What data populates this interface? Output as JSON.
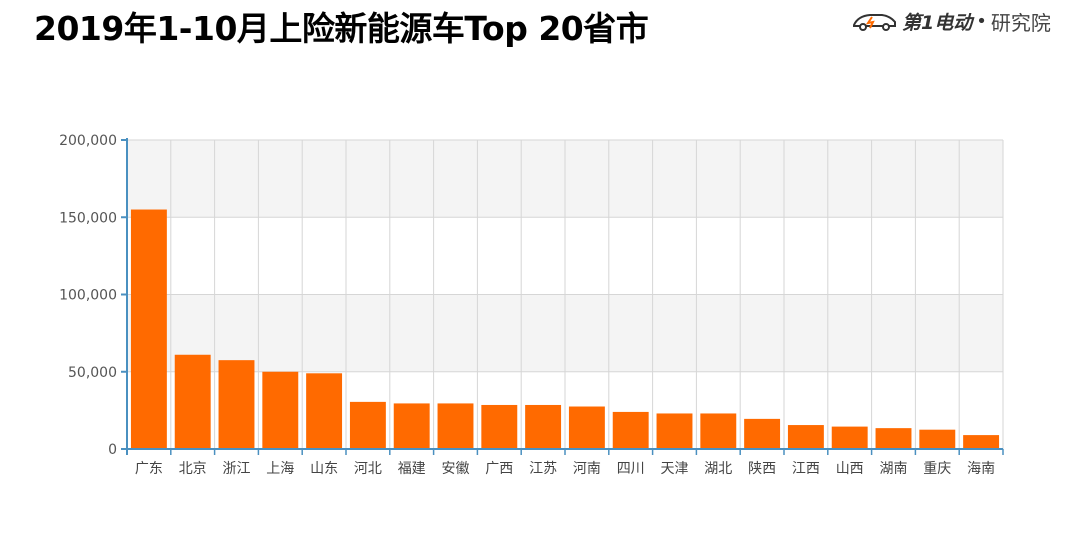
{
  "title": "2019年1-10月上险新能源车Top 20省市",
  "brand": {
    "logo_text": "第1电动",
    "separator": "•",
    "suffix": "研究院"
  },
  "colors": {
    "bar": "#ff6a00",
    "axis": "#4a90c0",
    "band_light": "#f4f4f4",
    "grid": "#d6d6d6"
  },
  "chart_data": {
    "type": "bar",
    "title": "2019年1-10月上险新能源车Top 20省市",
    "categories": [
      "广东",
      "北京",
      "浙江",
      "上海",
      "山东",
      "河北",
      "福建",
      "安徽",
      "广西",
      "江苏",
      "河南",
      "四川",
      "天津",
      "湖北",
      "陕西",
      "江西",
      "山西",
      "湖南",
      "重庆",
      "海南"
    ],
    "series": [
      {
        "values": [
          155000,
          61000,
          57500,
          50000,
          49000,
          30500,
          29500,
          29500,
          28500,
          28500,
          27500,
          24000,
          23000,
          23000,
          19500,
          15500,
          14500,
          13500,
          12500,
          9000
        ]
      }
    ],
    "ylim": [
      0,
      200000
    ],
    "yticks": [
      0,
      50000,
      100000,
      150000,
      200000
    ],
    "ytick_labels": [
      "0",
      "50,000",
      "100,000",
      "150,000",
      "200,000"
    ],
    "grid": true,
    "xlabel": "",
    "ylabel": ""
  }
}
